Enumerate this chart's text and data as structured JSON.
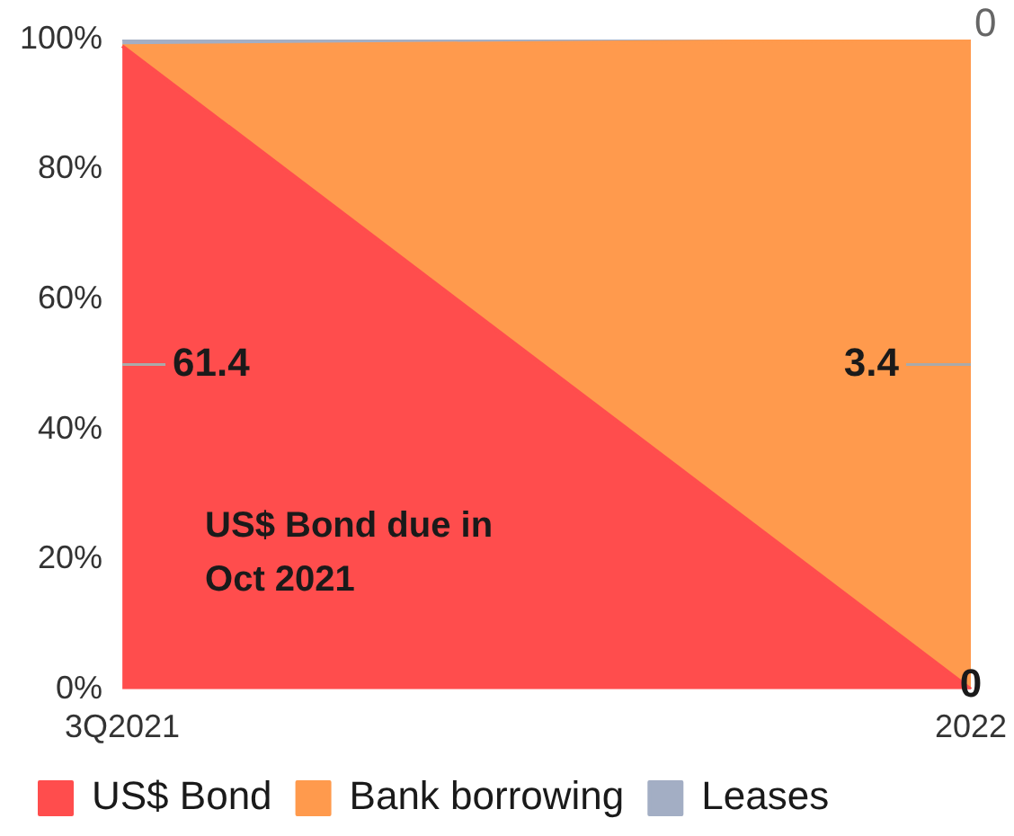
{
  "chart_data": {
    "type": "area",
    "stacked": true,
    "categories": [
      "3Q2021",
      "2022"
    ],
    "series": [
      {
        "name": "US$ Bond",
        "color": "#ff4d4d",
        "values": [
          99,
          0
        ]
      },
      {
        "name": "Bank borrowing",
        "color": "#ff9a4d",
        "values": [
          0,
          100
        ]
      },
      {
        "name": "Leases",
        "color": "#a3aec4",
        "values": [
          1,
          0
        ]
      }
    ],
    "ylim": [
      0,
      100
    ],
    "yticks": [
      {
        "value": 0,
        "label": "0%"
      },
      {
        "value": 20,
        "label": "20%"
      },
      {
        "value": 40,
        "label": "40%"
      },
      {
        "value": 60,
        "label": "60%"
      },
      {
        "value": 80,
        "label": "80%"
      },
      {
        "value": 100,
        "label": "100%"
      }
    ],
    "annotations": [
      "US$ Bond due in Oct 2021",
      {
        "text": "61.4",
        "x": "3Q2021",
        "y": 50
      },
      {
        "text": "3.4",
        "x": "2022",
        "y": 50
      },
      {
        "text": "0",
        "x": "2022",
        "y": 0
      },
      {
        "text": "0",
        "x": "2022",
        "y": 100
      }
    ],
    "grid": false,
    "legend": "bottom"
  }
}
